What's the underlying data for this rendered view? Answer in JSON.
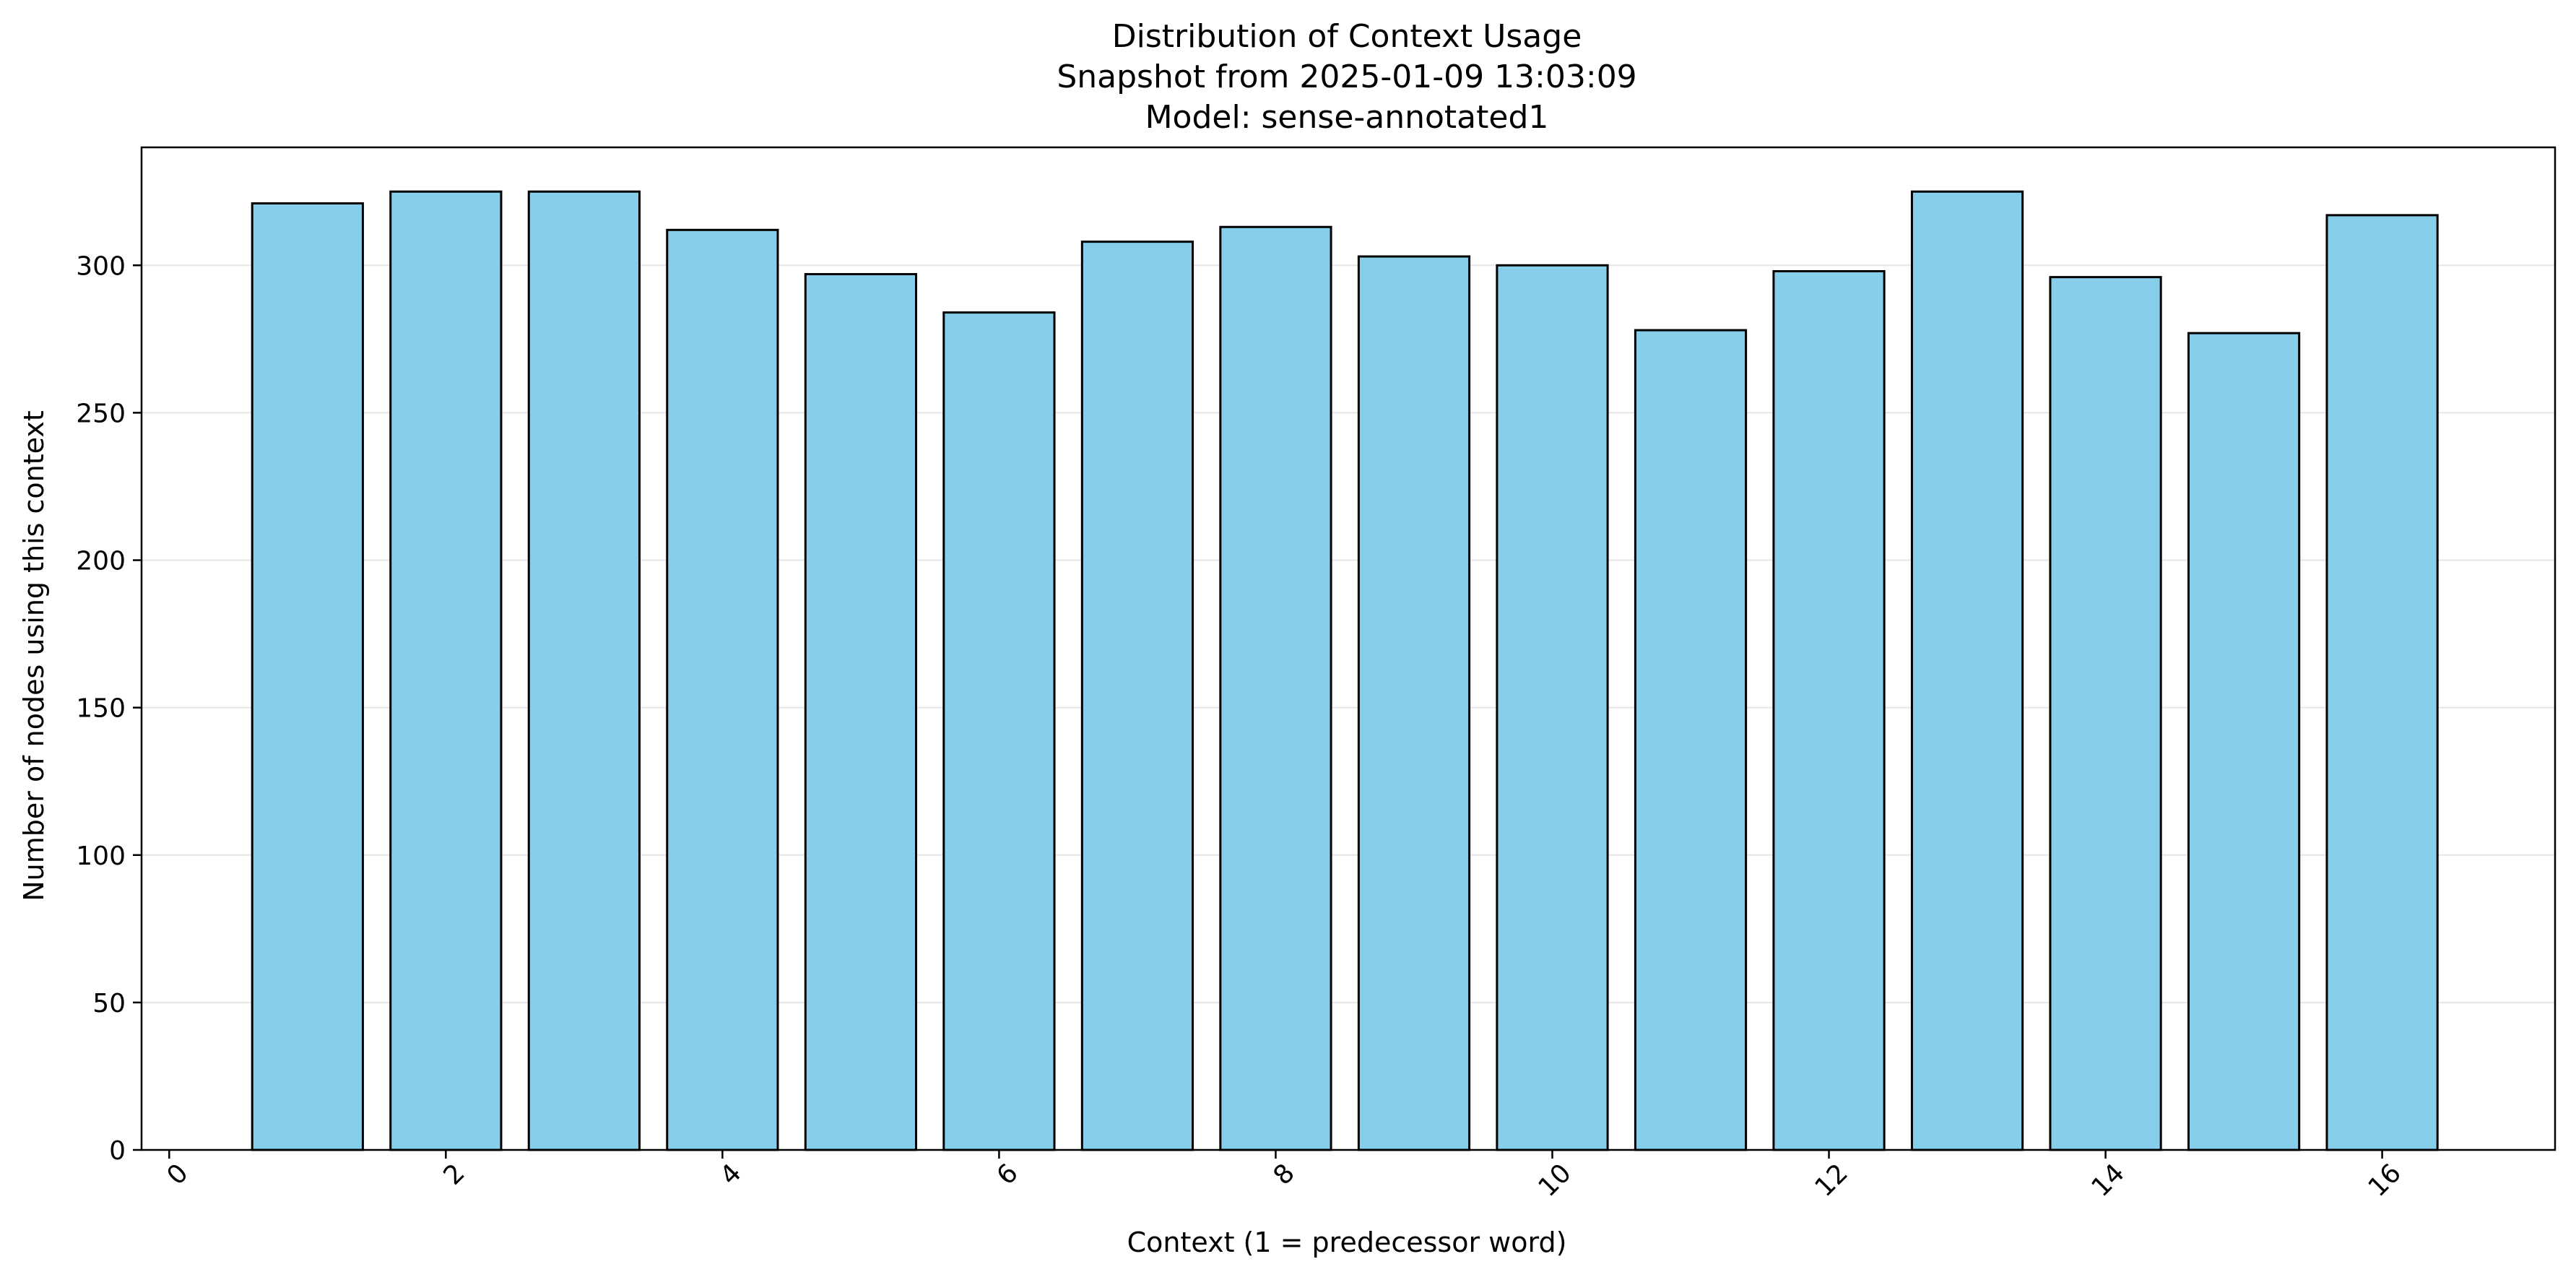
{
  "chart_data": {
    "type": "bar",
    "title_lines": [
      "Distribution of Context Usage",
      "Snapshot from 2025-01-09 13:03:09",
      "Model: sense-annotated1"
    ],
    "xlabel": "Context (1 = predecessor word)",
    "ylabel": "Number of nodes using this context",
    "x": [
      1,
      2,
      3,
      4,
      5,
      6,
      7,
      8,
      9,
      10,
      11,
      12,
      13,
      14,
      15,
      16
    ],
    "values": [
      321,
      325,
      325,
      312,
      297,
      284,
      308,
      313,
      303,
      300,
      278,
      298,
      325,
      296,
      277,
      317
    ],
    "xlim": [
      -0.2,
      17.25
    ],
    "ylim": [
      0,
      340
    ],
    "xticks": [
      0,
      2,
      4,
      6,
      8,
      10,
      12,
      14,
      16
    ],
    "yticks": [
      0,
      50,
      100,
      150,
      200,
      250,
      300
    ],
    "bar_width": 0.8,
    "x_tick_rotation_deg": 45,
    "grid": "y-axis, light",
    "colors": {
      "bar_fill": "#87ceeb",
      "bar_edge": "#000000",
      "grid": "#e6e6e6"
    }
  }
}
